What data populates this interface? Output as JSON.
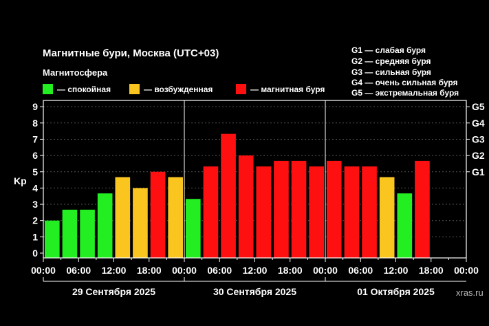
{
  "chart_data": {
    "type": "bar",
    "title": "Магнитные бури, Москва (UTC+03)",
    "legend_title": "Магнитосфера",
    "legend": [
      {
        "label": "— спокойная",
        "color": "#22ee22"
      },
      {
        "label": "— возбужденная",
        "color": "#fbc520"
      },
      {
        "label": "— магнитная буря",
        "color": "#ff1010"
      }
    ],
    "g_legend": [
      "G1 — слабая буря",
      "G2 — средняя буря",
      "G3 — сильная буря",
      "G4 — очень сильная буря",
      "G5 — экстремальная буря"
    ],
    "ylabel": "Kp",
    "ylim": [
      0,
      9
    ],
    "yticks": [
      "0",
      "1",
      "2",
      "3",
      "4",
      "5",
      "6",
      "7",
      "8",
      "9"
    ],
    "right_ticks": [
      {
        "label": "G1",
        "value": 5
      },
      {
        "label": "G2",
        "value": 6
      },
      {
        "label": "G3",
        "value": 7
      },
      {
        "label": "G4",
        "value": 8
      },
      {
        "label": "G5",
        "value": 9
      }
    ],
    "xticks": [
      "00:00",
      "06:00",
      "12:00",
      "18:00",
      "00:00",
      "06:00",
      "12:00",
      "18:00",
      "00:00",
      "06:00",
      "12:00",
      "18:00",
      "00:00"
    ],
    "days": [
      "29 Сентября 2025",
      "30 Сентября 2025",
      "01 Октября 2025"
    ],
    "interval_hours": 3,
    "values": [
      2.0,
      2.67,
      2.67,
      3.67,
      4.67,
      4.0,
      5.0,
      4.67,
      3.33,
      5.33,
      7.33,
      6.0,
      5.33,
      5.67,
      5.67,
      5.33,
      5.67,
      5.33,
      5.33,
      4.67,
      3.67,
      5.67
    ],
    "levels": [
      "calm",
      "calm",
      "calm",
      "calm",
      "active",
      "active",
      "storm",
      "active",
      "calm",
      "storm",
      "storm",
      "storm",
      "storm",
      "storm",
      "storm",
      "storm",
      "storm",
      "storm",
      "storm",
      "active",
      "calm",
      "storm"
    ],
    "grid": true
  },
  "colors": {
    "calm": "#22ee22",
    "active": "#fbc520",
    "storm": "#ff1010"
  },
  "watermark": "xras.ru"
}
